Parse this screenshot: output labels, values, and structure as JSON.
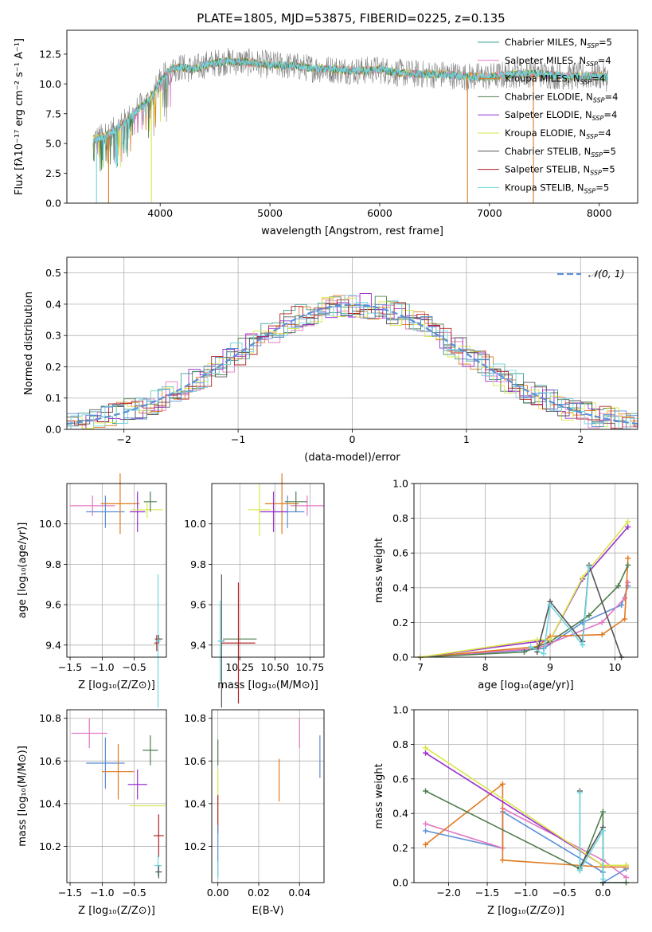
{
  "figure": {
    "title": "PLATE=1805, MJD=53875, FIBERID=0225, z=0.135"
  },
  "colors": {
    "chabrier_miles": "#3a9e98",
    "salpeter_miles": "#e377c2",
    "kroupa_miles": "#e07a20",
    "chabrier_elodie": "#4f7f4f",
    "salpeter_elodie": "#9b30d0",
    "kroupa_elodie": "#d9e64a",
    "chabrier_stelib": "#555555",
    "salpeter_stelib": "#b22222",
    "kroupa_stelib": "#70d6e0",
    "normal": "#5b8fd6"
  },
  "legend_spectrum": [
    {
      "label": "Chabrier MILES, N",
      "sub": "SSP",
      "tail": "=5",
      "color": "#3a9e98"
    },
    {
      "label": "Salpeter MILES, N",
      "sub": "SSP",
      "tail": "=4",
      "color": "#e377c2"
    },
    {
      "label": "Kroupa MILES, N",
      "sub": "SSP",
      "tail": "=4",
      "color": "#e07a20"
    },
    {
      "label": "Chabrier ELODIE, N",
      "sub": "SSP",
      "tail": "=4",
      "color": "#4f7f4f"
    },
    {
      "label": "Salpeter ELODIE, N",
      "sub": "SSP",
      "tail": "=4",
      "color": "#9b30d0"
    },
    {
      "label": "Kroupa ELODIE, N",
      "sub": "SSP",
      "tail": "=4",
      "color": "#d9e64a"
    },
    {
      "label": "Chabrier STELIB, N",
      "sub": "SSP",
      "tail": "=5",
      "color": "#555555"
    },
    {
      "label": "Salpeter STELIB, N",
      "sub": "SSP",
      "tail": "=5",
      "color": "#b22222"
    },
    {
      "label": "Kroupa STELIB, N",
      "sub": "SSP",
      "tail": "=5",
      "color": "#70d6e0"
    }
  ],
  "chart_data": [
    {
      "id": "spectrum",
      "type": "line",
      "xlabel": "wavelength [Angstrom, rest frame]",
      "ylabel": "Flux [fλ10⁻¹⁷ erg cm⁻² s⁻¹ A⁻¹]",
      "xlim": [
        3150,
        8350
      ],
      "ylim": [
        0,
        14.5
      ],
      "xticks": [
        4000,
        5000,
        6000,
        7000,
        8000
      ],
      "yticks": [
        0.0,
        2.5,
        5.0,
        7.5,
        10.0,
        12.5
      ],
      "ytick_labels": [
        "0.0",
        "2.5",
        "5.0",
        "7.5",
        "10.0",
        "12.5"
      ],
      "continuum": {
        "x": [
          3390,
          3500,
          3600,
          3700,
          3800,
          3900,
          4000,
          4100,
          4200,
          4300,
          4400,
          4600,
          4800,
          5000,
          5200,
          5400,
          5600,
          5800,
          6000,
          6200,
          6400,
          6600,
          6800,
          7000,
          7200,
          7400,
          7600,
          7800,
          8000,
          8080
        ],
        "y": [
          5.3,
          5.6,
          6.2,
          7.0,
          7.9,
          8.6,
          10.2,
          11.3,
          11.4,
          11.2,
          11.6,
          11.9,
          11.8,
          11.6,
          11.5,
          11.3,
          11.2,
          11.1,
          11.2,
          10.9,
          10.8,
          10.8,
          10.6,
          10.6,
          10.8,
          10.9,
          10.7,
          10.6,
          10.7,
          10.5
        ]
      },
      "spike_lines": [
        {
          "x": 3420,
          "y": 0.0,
          "color": "#70d6e0"
        },
        {
          "x": 3530,
          "y": 0.0,
          "color": "#e07a20"
        },
        {
          "x": 3920,
          "y": 0.0,
          "color": "#d9e64a"
        },
        {
          "x": 6800,
          "y": 0.0,
          "color": "#e07a20"
        },
        {
          "x": 7400,
          "y": 0.0,
          "color": "#e07a20"
        }
      ],
      "grid": false
    },
    {
      "id": "residual_histogram",
      "type": "step",
      "xlabel": "(data-model)/error",
      "ylabel": "Normed distribution",
      "xlim": [
        -2.5,
        2.5
      ],
      "ylim": [
        0,
        0.55
      ],
      "xticks": [
        -2,
        -1,
        0,
        1,
        2
      ],
      "xtick_labels": [
        "−2",
        "−1",
        "0",
        "1",
        "2"
      ],
      "yticks": [
        0.0,
        0.1,
        0.2,
        0.3,
        0.4,
        0.5
      ],
      "legend": "𝒩(0, 1)",
      "grid": true
    },
    {
      "id": "age_vs_Z",
      "type": "errorbar",
      "xlabel": "Z [log₁₀(Z/Z⊙)]",
      "ylabel": "age  [log₁₀(age/yr)]",
      "xlim": [
        -1.55,
        0.0
      ],
      "ylim": [
        9.34,
        10.2
      ],
      "xticks": [
        -1.5,
        -1.0,
        -0.5
      ],
      "xtick_labels": [
        "−1.5",
        "−1.0",
        "−0.5"
      ],
      "yticks": [
        9.4,
        9.6,
        9.8,
        10.0
      ],
      "points": [
        {
          "x": -1.15,
          "y": 10.09,
          "xerr": 0.35,
          "yerr": 0.05,
          "color": "#e377c2"
        },
        {
          "x": -0.95,
          "y": 10.06,
          "xerr": 0.3,
          "yerr": 0.08,
          "color": "#5b8fd6"
        },
        {
          "x": -0.72,
          "y": 10.1,
          "xerr": 0.3,
          "yerr": 0.15,
          "color": "#e07a20"
        },
        {
          "x": -0.45,
          "y": 10.06,
          "xerr": 0.12,
          "yerr": 0.1,
          "color": "#9b30d0"
        },
        {
          "x": -0.3,
          "y": 10.07,
          "xerr": 0.25,
          "yerr": 0.04,
          "color": "#d9e64a"
        },
        {
          "x": -0.25,
          "y": 10.11,
          "xerr": 0.1,
          "yerr": 0.05,
          "color": "#4f7f4f"
        },
        {
          "x": -0.12,
          "y": 9.43,
          "xerr": 0.06,
          "yerr": 0.02,
          "color": "#555555"
        },
        {
          "x": -0.15,
          "y": 9.41,
          "xerr": 0.04,
          "yerr": 0.04,
          "color": "#b22222"
        },
        {
          "x": -0.13,
          "y": 9.42,
          "xerr": 0.04,
          "yerr": 0.33,
          "color": "#70d6e0"
        }
      ]
    },
    {
      "id": "age_vs_mass",
      "type": "errorbar",
      "xlabel": "mass [log₁₀(M/M⊙)]",
      "ylabel": "",
      "xlim": [
        10.05,
        10.85
      ],
      "ylim": [
        9.34,
        10.2
      ],
      "xticks": [
        10.25,
        10.5,
        10.75
      ],
      "xtick_labels": [
        "10.25",
        "10.50",
        "10.75"
      ],
      "yticks": [
        9.4,
        9.6,
        9.8,
        10.0
      ],
      "points": [
        {
          "x": 10.73,
          "y": 10.09,
          "xerr": 0.12,
          "yerr": 0.05,
          "color": "#e377c2"
        },
        {
          "x": 10.59,
          "y": 10.06,
          "xerr": 0.12,
          "yerr": 0.08,
          "color": "#5b8fd6"
        },
        {
          "x": 10.55,
          "y": 10.1,
          "xerr": 0.12,
          "yerr": 0.15,
          "color": "#e07a20"
        },
        {
          "x": 10.49,
          "y": 10.06,
          "xerr": 0.1,
          "yerr": 0.1,
          "color": "#9b30d0"
        },
        {
          "x": 10.39,
          "y": 10.07,
          "xerr": 0.08,
          "yerr": 0.13,
          "color": "#d9e64a"
        },
        {
          "x": 10.65,
          "y": 10.11,
          "xerr": 0.08,
          "yerr": 0.05,
          "color": "#4f7f4f"
        },
        {
          "x": 10.25,
          "y": 9.43,
          "xerr": 0.12,
          "yerr": 0.0,
          "color": "#4f7f4f"
        },
        {
          "x": 10.24,
          "y": 9.41,
          "xerr": 0.12,
          "yerr": 0.3,
          "color": "#b22222"
        },
        {
          "x": 10.12,
          "y": 9.42,
          "xerr": 0.02,
          "yerr": 0.33,
          "color": "#555555"
        },
        {
          "x": 10.11,
          "y": 9.42,
          "xerr": 0.02,
          "yerr": 0.2,
          "color": "#70d6e0"
        }
      ]
    },
    {
      "id": "mass_weight_vs_age",
      "type": "line",
      "xlabel": "age  [log₁₀(age/yr)]",
      "ylabel": "mass weight",
      "xlim": [
        6.9,
        10.35
      ],
      "ylim": [
        0,
        1.0
      ],
      "xticks": [
        7,
        8,
        9,
        10
      ],
      "yticks": [
        0.0,
        0.2,
        0.4,
        0.6,
        0.8,
        1.0
      ],
      "series": [
        {
          "color": "#5b8fd6",
          "x": [
            7.0,
            8.6,
            8.9,
            9.5,
            10.1,
            10.2
          ],
          "y": [
            0.0,
            0.04,
            0.05,
            0.2,
            0.3,
            0.41
          ]
        },
        {
          "color": "#e377c2",
          "x": [
            7.0,
            8.8,
            9.0,
            9.8,
            10.15,
            10.2
          ],
          "y": [
            0.0,
            0.05,
            0.08,
            0.2,
            0.34,
            0.43
          ]
        },
        {
          "color": "#e07a20",
          "x": [
            7.0,
            8.8,
            9.0,
            9.8,
            10.15,
            10.2
          ],
          "y": [
            0.0,
            0.06,
            0.12,
            0.13,
            0.22,
            0.57
          ]
        },
        {
          "color": "#4f7f4f",
          "x": [
            7.0,
            8.6,
            9.0,
            9.6,
            10.05,
            10.2
          ],
          "y": [
            0.0,
            0.03,
            0.09,
            0.24,
            0.41,
            0.53
          ]
        },
        {
          "color": "#9b30d0",
          "x": [
            7.0,
            8.8,
            9.0,
            9.5,
            10.2
          ],
          "y": [
            0.0,
            0.09,
            0.1,
            0.45,
            0.75
          ]
        },
        {
          "color": "#d9e64a",
          "x": [
            7.0,
            8.8,
            9.0,
            9.5,
            10.2
          ],
          "y": [
            0.0,
            0.1,
            0.1,
            0.46,
            0.78
          ]
        },
        {
          "color": "#555555",
          "x": [
            8.8,
            9.0,
            9.5,
            9.6,
            10.1
          ],
          "y": [
            0.03,
            0.32,
            0.09,
            0.53,
            0.0
          ]
        },
        {
          "color": "#70d6e0",
          "x": [
            8.7,
            8.9,
            9.0,
            9.5,
            9.6
          ],
          "y": [
            0.06,
            0.02,
            0.3,
            0.07,
            0.52
          ]
        }
      ]
    },
    {
      "id": "mass_vs_Z",
      "type": "errorbar",
      "xlabel": "Z [log₁₀(Z/Z⊙)]",
      "ylabel": "mass [log₁₀(M/M⊙)]",
      "xlim": [
        -1.55,
        0.0
      ],
      "ylim": [
        10.03,
        10.84
      ],
      "xticks": [
        -1.5,
        -1.0,
        -0.5
      ],
      "xtick_labels": [
        "−1.5",
        "−1.0",
        "−0.5"
      ],
      "yticks": [
        10.2,
        10.4,
        10.6,
        10.8
      ],
      "points": [
        {
          "x": -1.2,
          "y": 10.73,
          "xerr": 0.28,
          "yerr": 0.07,
          "color": "#e377c2"
        },
        {
          "x": -0.95,
          "y": 10.59,
          "xerr": 0.3,
          "yerr": 0.12,
          "color": "#5b8fd6"
        },
        {
          "x": -0.75,
          "y": 10.55,
          "xerr": 0.25,
          "yerr": 0.13,
          "color": "#e07a20"
        },
        {
          "x": -0.45,
          "y": 10.49,
          "xerr": 0.15,
          "yerr": 0.07,
          "color": "#9b30d0"
        },
        {
          "x": -0.3,
          "y": 10.39,
          "xerr": 0.28,
          "yerr": 0.0,
          "color": "#d9e64a"
        },
        {
          "x": -0.25,
          "y": 10.65,
          "xerr": 0.12,
          "yerr": 0.07,
          "color": "#4f7f4f"
        },
        {
          "x": -0.12,
          "y": 10.25,
          "xerr": 0.08,
          "yerr": 0.1,
          "color": "#b22222"
        },
        {
          "x": -0.13,
          "y": 10.11,
          "xerr": 0.06,
          "yerr": 0.05,
          "color": "#70d6e0"
        },
        {
          "x": -0.12,
          "y": 10.08,
          "xerr": 0.05,
          "yerr": 0.03,
          "color": "#555555"
        }
      ]
    },
    {
      "id": "mass_vs_ebv",
      "type": "errorbar",
      "xlabel": "E(B-V)",
      "ylabel": "",
      "xlim": [
        -0.003,
        0.052
      ],
      "ylim": [
        10.03,
        10.84
      ],
      "xticks": [
        0.0,
        0.02,
        0.04
      ],
      "xtick_labels": [
        "0.00",
        "0.02",
        "0.04"
      ],
      "yticks": [
        10.2,
        10.4,
        10.6,
        10.8
      ],
      "points": [
        {
          "x": 0.04,
          "y": 10.73,
          "xerr": 0.0,
          "yerr": 0.07,
          "color": "#e377c2"
        },
        {
          "x": 0.05,
          "y": 10.62,
          "xerr": 0.0,
          "yerr": 0.1,
          "color": "#5b8fd6"
        },
        {
          "x": 0.03,
          "y": 10.51,
          "xerr": 0.0,
          "yerr": 0.1,
          "color": "#e07a20"
        },
        {
          "x": 0.0,
          "y": 10.64,
          "xerr": 0.0,
          "yerr": 0.06,
          "color": "#4f7f4f"
        },
        {
          "x": 0.0,
          "y": 10.49,
          "xerr": 0.0,
          "yerr": 0.07,
          "color": "#d9e64a"
        },
        {
          "x": 0.0,
          "y": 10.35,
          "xerr": 0.0,
          "yerr": 0.09,
          "color": "#b22222"
        },
        {
          "x": 0.0,
          "y": 10.18,
          "xerr": 0.0,
          "yerr": 0.12,
          "color": "#5b8fd6"
        },
        {
          "x": 0.0,
          "y": 10.09,
          "xerr": 0.0,
          "yerr": 0.04,
          "color": "#70d6e0"
        }
      ]
    },
    {
      "id": "mass_weight_vs_Z",
      "type": "line",
      "xlabel": "Z [log₁₀(Z/Z⊙)]",
      "ylabel": "mass weight",
      "xlim": [
        -2.45,
        0.45
      ],
      "ylim": [
        0,
        1.0
      ],
      "xticks": [
        -2.0,
        -1.5,
        -1.0,
        -0.5,
        0.0
      ],
      "xtick_labels": [
        "−2.0",
        "−1.5",
        "−1.0",
        "−0.5",
        "0.0"
      ],
      "yticks": [
        0.0,
        0.2,
        0.4,
        0.6,
        0.8,
        1.0
      ],
      "series": [
        {
          "color": "#5b8fd6",
          "x": [
            -2.3,
            -1.3,
            -1.3,
            0.0,
            0.0,
            0.3
          ],
          "y": [
            0.3,
            0.2,
            0.41,
            0.06,
            0.0,
            0.08
          ]
        },
        {
          "color": "#e377c2",
          "x": [
            -2.3,
            -1.3,
            -1.3,
            0.0,
            0.3
          ],
          "y": [
            0.34,
            0.2,
            0.43,
            0.13,
            0.03
          ]
        },
        {
          "color": "#e07a20",
          "x": [
            -2.3,
            -1.3,
            -1.3,
            0.0,
            0.3
          ],
          "y": [
            0.22,
            0.57,
            0.13,
            0.09,
            0.09
          ]
        },
        {
          "color": "#4f7f4f",
          "x": [
            -2.3,
            -0.3,
            -0.3,
            0.0,
            0.0,
            0.3
          ],
          "y": [
            0.53,
            0.08,
            0.07,
            0.41,
            0.0,
            0.0
          ]
        },
        {
          "color": "#9b30d0",
          "x": [
            -2.3,
            0.0,
            0.3
          ],
          "y": [
            0.75,
            0.1,
            0.1
          ]
        },
        {
          "color": "#d9e64a",
          "x": [
            -2.3,
            0.0,
            0.3
          ],
          "y": [
            0.78,
            0.1,
            0.1
          ]
        },
        {
          "color": "#555555",
          "x": [
            -0.3,
            -0.3,
            0.0,
            0.0
          ],
          "y": [
            0.53,
            0.09,
            0.32,
            0.0
          ]
        },
        {
          "color": "#70d6e0",
          "x": [
            -0.3,
            -0.3,
            0.0,
            0.0
          ],
          "y": [
            0.52,
            0.07,
            0.3,
            0.02
          ]
        }
      ]
    }
  ]
}
